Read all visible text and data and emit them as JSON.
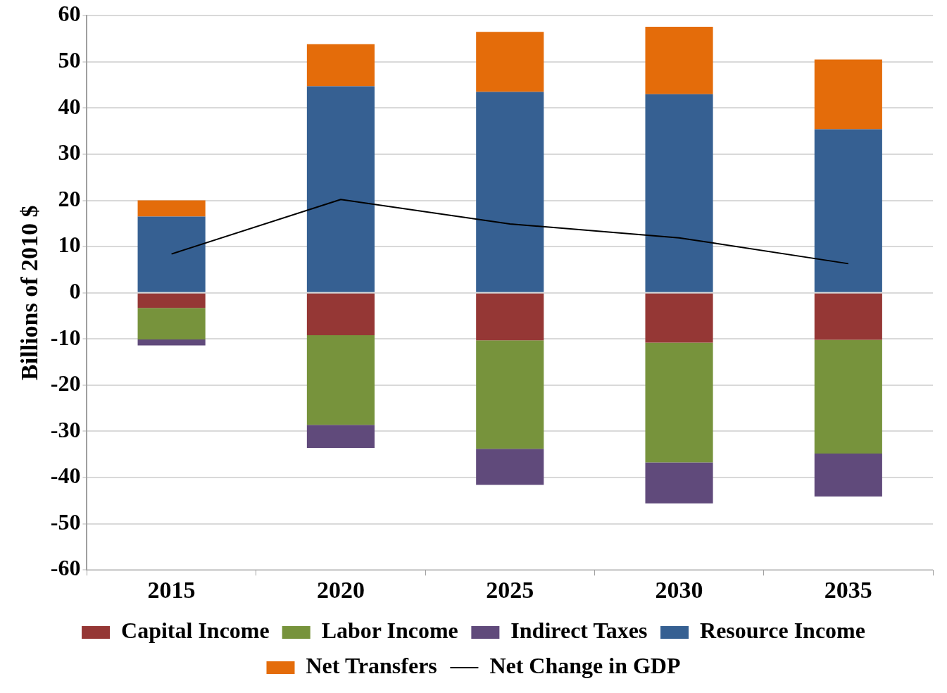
{
  "chart_data": {
    "type": "bar",
    "stacked": true,
    "ylabel": "Billions of 2010 $",
    "categories": [
      "2015",
      "2020",
      "2025",
      "2030",
      "2035"
    ],
    "ylim": [
      -60,
      60
    ],
    "yticks": [
      -60,
      -50,
      -40,
      -30,
      -20,
      -10,
      0,
      10,
      20,
      30,
      40,
      50,
      60
    ],
    "grid": "y",
    "legend": "bottom",
    "marker": "none",
    "series": [
      {
        "name": "Capital Income",
        "color": "#953735",
        "values": [
          -3.3,
          -9.2,
          -10.3,
          -10.8,
          -10.2
        ]
      },
      {
        "name": "Labor Income",
        "color": "#77933c",
        "values": [
          -6.8,
          -19.4,
          -23.5,
          -25.9,
          -24.6
        ]
      },
      {
        "name": "Indirect Taxes",
        "color": "#604a7b",
        "values": [
          -1.3,
          -5.0,
          -7.8,
          -8.9,
          -9.3
        ]
      },
      {
        "name": "Resource Income",
        "color": "#366092",
        "values": [
          16.5,
          44.7,
          43.5,
          43.0,
          35.4
        ]
      },
      {
        "name": "Net Transfers",
        "color": "#e46c0a",
        "values": [
          3.5,
          9.1,
          13.0,
          14.6,
          15.1
        ]
      },
      {
        "name": "Net Change in GDP",
        "type": "line",
        "color": "#000000",
        "values": [
          8.4,
          20.2,
          14.9,
          11.9,
          6.3
        ]
      }
    ]
  }
}
